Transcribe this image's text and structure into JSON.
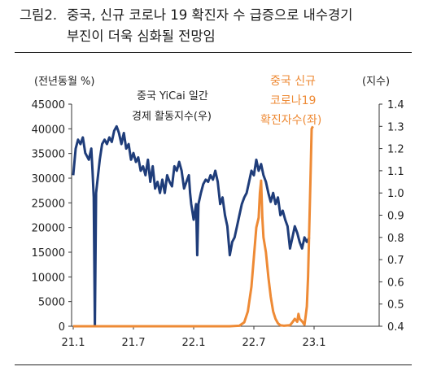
{
  "figure": {
    "label": "그림2.",
    "title_line1": "중국, 신규 코로나 19 확진자 수 급증으로 내수경기",
    "title_line2": "부진이 더욱 심화될 전망임"
  },
  "chart_data": {
    "type": "line",
    "x_ticks": [
      "21.1",
      "21.7",
      "22.1",
      "22.7",
      "23.1"
    ],
    "y_left": {
      "unit_label": "(전년동월 %)",
      "ticks": [
        "0",
        "5000",
        "10000",
        "15000",
        "20000",
        "25000",
        "30000",
        "35000",
        "40000",
        "45000"
      ],
      "min": 0,
      "max": 45000
    },
    "y_right": {
      "unit_label": "(지수)",
      "ticks": [
        "0.4",
        "0.5",
        "0.6",
        "0.7",
        "0.8",
        "0.9",
        "1.0",
        "1.1",
        "1.2",
        "1.3",
        "1.4"
      ],
      "min": 0.4,
      "max": 1.4
    },
    "series": [
      {
        "name_lines": [
          "중국 YiCai 일간",
          "경제 활동지수(우)"
        ],
        "axis": "right",
        "color": "#1f3d7a",
        "points": [
          [
            0,
            1.08
          ],
          [
            0.02,
            1.2
          ],
          [
            0.04,
            1.24
          ],
          [
            0.06,
            1.22
          ],
          [
            0.08,
            1.25
          ],
          [
            0.1,
            1.18
          ],
          [
            0.13,
            1.15
          ],
          [
            0.15,
            1.2
          ],
          [
            0.16,
            1.1
          ],
          [
            0.17,
            0.98
          ],
          [
            0.18,
            0.4
          ],
          [
            0.19,
            1.0
          ],
          [
            0.2,
            1.05
          ],
          [
            0.22,
            1.15
          ],
          [
            0.24,
            1.22
          ],
          [
            0.26,
            1.24
          ],
          [
            0.28,
            1.22
          ],
          [
            0.3,
            1.25
          ],
          [
            0.32,
            1.23
          ],
          [
            0.34,
            1.28
          ],
          [
            0.36,
            1.3
          ],
          [
            0.38,
            1.27
          ],
          [
            0.4,
            1.22
          ],
          [
            0.42,
            1.27
          ],
          [
            0.44,
            1.2
          ],
          [
            0.46,
            1.22
          ],
          [
            0.48,
            1.15
          ],
          [
            0.5,
            1.18
          ],
          [
            0.52,
            1.14
          ],
          [
            0.54,
            1.16
          ],
          [
            0.56,
            1.1
          ],
          [
            0.58,
            1.12
          ],
          [
            0.6,
            1.08
          ],
          [
            0.62,
            1.15
          ],
          [
            0.64,
            1.05
          ],
          [
            0.66,
            1.12
          ],
          [
            0.68,
            1.02
          ],
          [
            0.7,
            1.05
          ],
          [
            0.72,
            1.0
          ],
          [
            0.74,
            1.06
          ],
          [
            0.76,
            1.0
          ],
          [
            0.78,
            1.08
          ],
          [
            0.8,
            1.05
          ],
          [
            0.82,
            1.03
          ],
          [
            0.84,
            1.12
          ],
          [
            0.86,
            1.1
          ],
          [
            0.88,
            1.14
          ],
          [
            0.9,
            1.1
          ],
          [
            0.92,
            1.02
          ],
          [
            0.94,
            1.05
          ],
          [
            0.96,
            1.08
          ],
          [
            0.97,
            1.0
          ],
          [
            0.98,
            0.95
          ],
          [
            1.0,
            0.88
          ],
          [
            1.02,
            0.95
          ],
          [
            1.03,
            0.72
          ],
          [
            1.04,
            0.95
          ],
          [
            1.06,
            1.0
          ],
          [
            1.08,
            1.04
          ],
          [
            1.1,
            1.06
          ],
          [
            1.12,
            1.05
          ],
          [
            1.14,
            1.08
          ],
          [
            1.16,
            1.06
          ],
          [
            1.18,
            1.1
          ],
          [
            1.2,
            1.05
          ],
          [
            1.22,
            0.95
          ],
          [
            1.24,
            0.98
          ],
          [
            1.26,
            0.9
          ],
          [
            1.28,
            0.85
          ],
          [
            1.3,
            0.72
          ],
          [
            1.32,
            0.78
          ],
          [
            1.34,
            0.8
          ],
          [
            1.36,
            0.85
          ],
          [
            1.38,
            0.9
          ],
          [
            1.4,
            0.95
          ],
          [
            1.42,
            0.98
          ],
          [
            1.44,
            1.0
          ],
          [
            1.46,
            1.05
          ],
          [
            1.48,
            1.1
          ],
          [
            1.5,
            1.08
          ],
          [
            1.52,
            1.15
          ],
          [
            1.54,
            1.1
          ],
          [
            1.56,
            1.13
          ],
          [
            1.58,
            1.08
          ],
          [
            1.6,
            1.05
          ],
          [
            1.62,
            1.0
          ],
          [
            1.64,
            0.96
          ],
          [
            1.66,
            1.0
          ],
          [
            1.68,
            0.95
          ],
          [
            1.7,
            0.98
          ],
          [
            1.72,
            0.9
          ],
          [
            1.74,
            0.92
          ],
          [
            1.76,
            0.88
          ],
          [
            1.78,
            0.85
          ],
          [
            1.8,
            0.75
          ],
          [
            1.82,
            0.8
          ],
          [
            1.84,
            0.85
          ],
          [
            1.86,
            0.82
          ],
          [
            1.88,
            0.78
          ],
          [
            1.9,
            0.75
          ],
          [
            1.92,
            0.8
          ],
          [
            1.94,
            0.78
          ],
          [
            1.96,
            0.8
          ]
        ]
      },
      {
        "name_lines": [
          "중국 신규",
          "코로나19",
          "확진자수(좌)"
        ],
        "axis": "left",
        "color": "#ee8a35",
        "points": [
          [
            0,
            0
          ],
          [
            1.3,
            0
          ],
          [
            1.38,
            100
          ],
          [
            1.42,
            800
          ],
          [
            1.45,
            3000
          ],
          [
            1.48,
            8000
          ],
          [
            1.5,
            14000
          ],
          [
            1.52,
            20000
          ],
          [
            1.54,
            22000
          ],
          [
            1.55,
            27000
          ],
          [
            1.56,
            29500
          ],
          [
            1.57,
            22000
          ],
          [
            1.58,
            18000
          ],
          [
            1.6,
            15000
          ],
          [
            1.62,
            10000
          ],
          [
            1.64,
            6000
          ],
          [
            1.66,
            3000
          ],
          [
            1.68,
            1500
          ],
          [
            1.7,
            600
          ],
          [
            1.72,
            200
          ],
          [
            1.75,
            100
          ],
          [
            1.8,
            200
          ],
          [
            1.82,
            800
          ],
          [
            1.84,
            1500
          ],
          [
            1.86,
            900
          ],
          [
            1.87,
            2500
          ],
          [
            1.88,
            1500
          ],
          [
            1.9,
            1000
          ],
          [
            1.92,
            300
          ],
          [
            1.93,
            2000
          ],
          [
            1.94,
            4000
          ],
          [
            1.95,
            10000
          ],
          [
            1.96,
            20000
          ],
          [
            1.97,
            30000
          ],
          [
            1.98,
            40000
          ],
          [
            1.99,
            40500
          ]
        ]
      }
    ]
  }
}
